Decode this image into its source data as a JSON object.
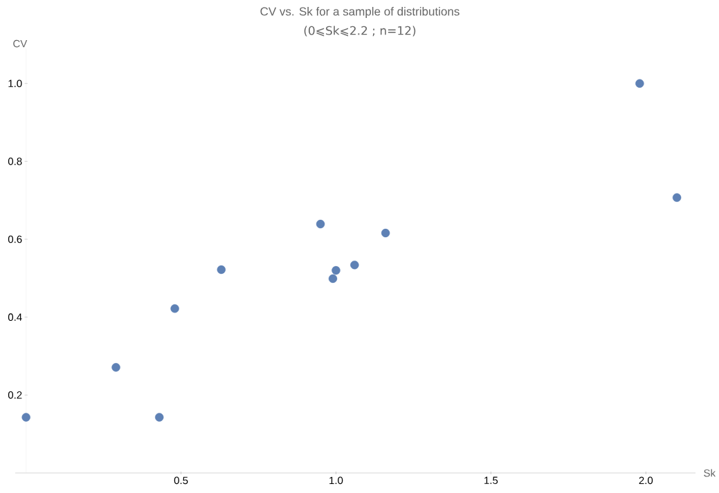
{
  "chart_data": {
    "type": "scatter",
    "title": "CV vs. Sk for a sample of distributions",
    "subtitle": "(0⩽Sk⩽2.2 ; n=12)",
    "xlabel": "Sk",
    "ylabel": "CV",
    "x": [
      0.0,
      0.29,
      0.43,
      0.48,
      0.63,
      0.95,
      0.99,
      1.0,
      1.06,
      1.16,
      1.98,
      2.1
    ],
    "values": [
      0.143,
      0.271,
      0.143,
      0.422,
      0.522,
      0.639,
      0.499,
      0.52,
      0.534,
      0.616,
      1.0,
      0.707
    ],
    "color": "#5e81b5",
    "marker": "circle",
    "xlim": [
      -0.035,
      2.16
    ],
    "ylim": [
      0,
      1.09
    ],
    "xticks": [
      {
        "value": 0.5,
        "label": "0.5"
      },
      {
        "value": 1.0,
        "label": "1.0"
      },
      {
        "value": 1.5,
        "label": "1.5"
      },
      {
        "value": 2.0,
        "label": "2.0"
      }
    ],
    "yticks": [
      0.2,
      0.4,
      0.6,
      0.8,
      {
        "value": 1.0,
        "label": "1.0"
      }
    ]
  }
}
